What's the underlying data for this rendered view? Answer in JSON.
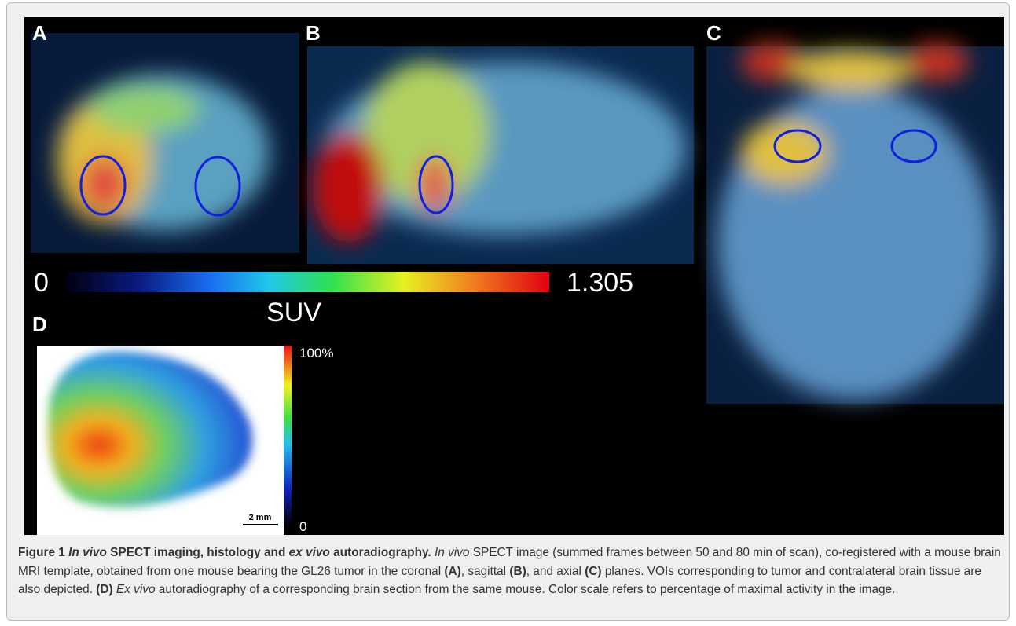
{
  "figure": {
    "panel_labels": [
      "A",
      "B",
      "C",
      "D"
    ],
    "colorbar": {
      "min": "0",
      "max": "1.305",
      "unit": "SUV"
    },
    "autoradiography": {
      "max": "100%",
      "min": "0",
      "scale_bar": "2 mm"
    }
  },
  "caption": {
    "parts": [
      "Figure 1 ",
      "In vivo",
      " SPECT imaging, histology and ",
      "ex vivo",
      " autoradiography.",
      " In vivo",
      " SPECT image (summed frames between 50 and 80 min of scan), co-registered with a mouse brain MRI template, obtained from one mouse bearing the GL26 tumor in the coronal ",
      "(A)",
      ", sagittal ",
      "(B)",
      ", and axial ",
      "(C)",
      " planes. VOIs corresponding to tumor and contralateral brain tissue are also depicted. ",
      "(D)",
      " Ex vivo",
      " autoradiography of a corresponding brain section from the same mouse. Color scale refers to percentage of maximal activity in the image."
    ]
  }
}
